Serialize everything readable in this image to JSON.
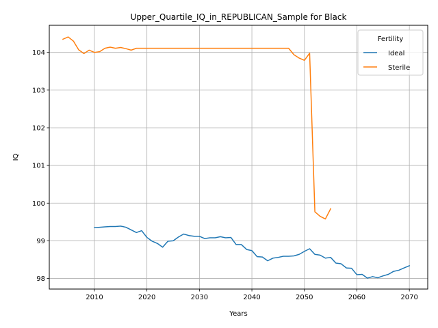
{
  "chart_data": {
    "type": "line",
    "title": "Upper_Quartile_IQ_in_REPUBLICAN_Sample for Black",
    "xlabel": "Years",
    "ylabel": "IQ",
    "xlim": [
      2001.4,
      2073.5
    ],
    "ylim": [
      97.72,
      104.72
    ],
    "xticks": [
      2010,
      2020,
      2030,
      2040,
      2050,
      2060,
      2070
    ],
    "yticks": [
      98,
      99,
      100,
      101,
      102,
      103,
      104
    ],
    "grid": true,
    "legend": {
      "title": "Fertility",
      "placement": "top-right"
    },
    "series": [
      {
        "name": "Ideal",
        "color": "#1f77b4",
        "x": [
          2010,
          2011,
          2012,
          2013,
          2014,
          2015,
          2016,
          2017,
          2018,
          2019,
          2020,
          2021,
          2022,
          2023,
          2024,
          2025,
          2026,
          2027,
          2028,
          2029,
          2030,
          2031,
          2032,
          2033,
          2034,
          2035,
          2036,
          2037,
          2038,
          2039,
          2040,
          2041,
          2042,
          2043,
          2044,
          2045,
          2046,
          2047,
          2048,
          2049,
          2050,
          2051,
          2052,
          2053,
          2054,
          2055,
          2056,
          2057,
          2058,
          2059,
          2060,
          2061,
          2062,
          2063,
          2064,
          2065,
          2066,
          2067,
          2068,
          2069,
          2070
        ],
        "values": [
          99.35,
          99.36,
          99.37,
          99.38,
          99.38,
          99.39,
          99.36,
          99.29,
          99.22,
          99.27,
          99.09,
          98.99,
          98.93,
          98.83,
          98.99,
          99.0,
          99.1,
          99.18,
          99.14,
          99.12,
          99.12,
          99.06,
          99.08,
          99.08,
          99.11,
          99.08,
          99.09,
          98.9,
          98.9,
          98.77,
          98.74,
          98.58,
          98.57,
          98.47,
          98.54,
          98.56,
          98.59,
          98.59,
          98.6,
          98.64,
          98.72,
          98.79,
          98.64,
          98.62,
          98.54,
          98.56,
          98.41,
          98.39,
          98.28,
          98.27,
          98.1,
          98.11,
          98.01,
          98.05,
          98.02,
          98.07,
          98.11,
          98.19,
          98.22,
          98.28,
          98.34
        ]
      },
      {
        "name": "Sterile",
        "color": "#ff7f0e",
        "x": [
          2004,
          2005,
          2006,
          2007,
          2008,
          2009,
          2010,
          2011,
          2012,
          2013,
          2014,
          2015,
          2016,
          2017,
          2018,
          2019,
          2020,
          2021,
          2022,
          2023,
          2024,
          2025,
          2026,
          2027,
          2028,
          2029,
          2030,
          2031,
          2032,
          2033,
          2034,
          2035,
          2036,
          2037,
          2038,
          2039,
          2040,
          2041,
          2042,
          2043,
          2044,
          2045,
          2046,
          2047,
          2048,
          2049,
          2050,
          2051,
          2052,
          2053,
          2054,
          2055
        ],
        "values": [
          104.35,
          104.41,
          104.3,
          104.07,
          103.97,
          104.06,
          104.0,
          104.02,
          104.11,
          104.14,
          104.11,
          104.13,
          104.1,
          104.06,
          104.11,
          104.11,
          104.11,
          104.11,
          104.11,
          104.11,
          104.11,
          104.11,
          104.11,
          104.11,
          104.11,
          104.11,
          104.11,
          104.11,
          104.11,
          104.11,
          104.11,
          104.11,
          104.11,
          104.11,
          104.11,
          104.11,
          104.11,
          104.11,
          104.11,
          104.11,
          104.11,
          104.11,
          104.11,
          104.11,
          103.94,
          103.85,
          103.79,
          103.98,
          99.77,
          99.65,
          99.58,
          99.85
        ]
      }
    ]
  }
}
